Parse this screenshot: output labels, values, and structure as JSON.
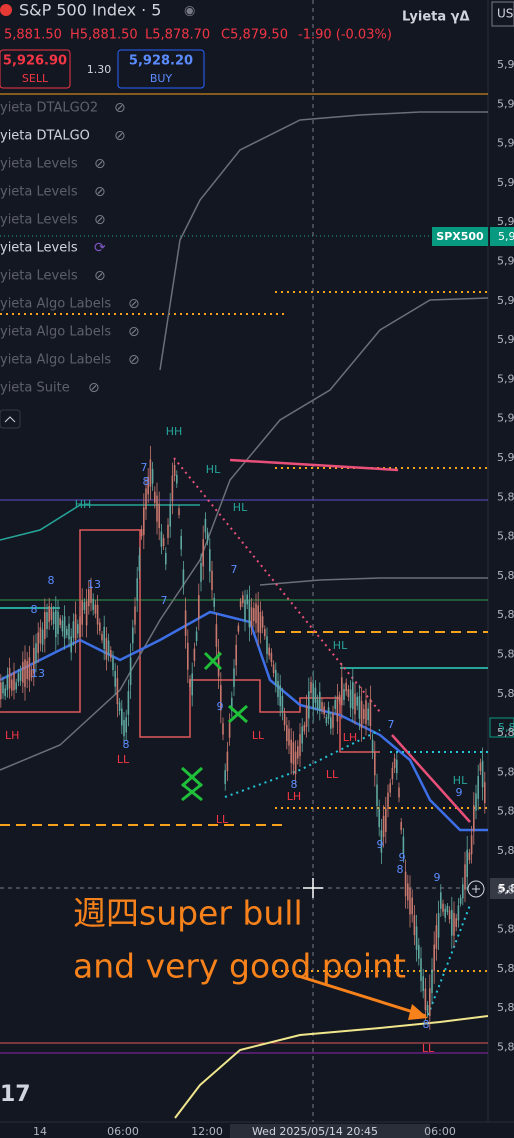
{
  "header": {
    "symbol": "S&P 500 Index · 5",
    "brand": "Lyieta γΔ",
    "currency": "US"
  },
  "ohlc": {
    "open": "5,881.50",
    "high": "H5,881.50",
    "low": "L5,878.70",
    "close": "C5,879.50",
    "change": "-1.90 (-0.03%)"
  },
  "trade": {
    "sell_price": "5,926.90",
    "sell": "SELL",
    "spread": "1.30",
    "buy_price": "5,928.20",
    "buy": "BUY"
  },
  "indicators": [
    "yieta DTALGO2",
    "yieta DTALGO",
    "yieta Levels",
    "yieta Levels",
    "yieta Levels",
    "yieta Levels",
    "yieta Levels",
    "yieta Algo Labels",
    "yieta Algo Labels",
    "yieta Algo Labels",
    "yieta Suite"
  ],
  "price_axis": [
    "5,9",
    "5,9",
    "5,9",
    "5,9",
    "5,9",
    "5,9",
    "5,9",
    "5,9",
    "5,9",
    "5,9",
    "5,9",
    "5,8",
    "5,8",
    "5,8",
    "5,8",
    "5,8",
    "5,8",
    "5,8",
    "5,8",
    "5,8",
    "5,8",
    "5,8",
    "5,8",
    "5,8",
    "5,8",
    "5,8"
  ],
  "price_tags": {
    "symbol_tag": "SPX500",
    "symbol_price": "5,9",
    "last_price": "5,8",
    "cursor_price": "5,8"
  },
  "chart_labels": [
    "HH",
    "HL",
    "HL",
    "HH",
    "HL",
    "HL",
    "LL",
    "LH",
    "LH",
    "LL",
    "LL",
    "LL",
    "LL",
    "LH",
    "7",
    "8",
    "8",
    "13",
    "8",
    "7",
    "7",
    "13",
    "8",
    "9",
    "7",
    "9",
    "9",
    "8",
    "8",
    "9",
    "9",
    "8"
  ],
  "annotation": [
    "週四super bull",
    "and very good point"
  ],
  "time_axis": [
    "14",
    "06:00",
    "12:00",
    "Wed 2025/05/14  20:45",
    "06:00"
  ],
  "logo": "17"
}
